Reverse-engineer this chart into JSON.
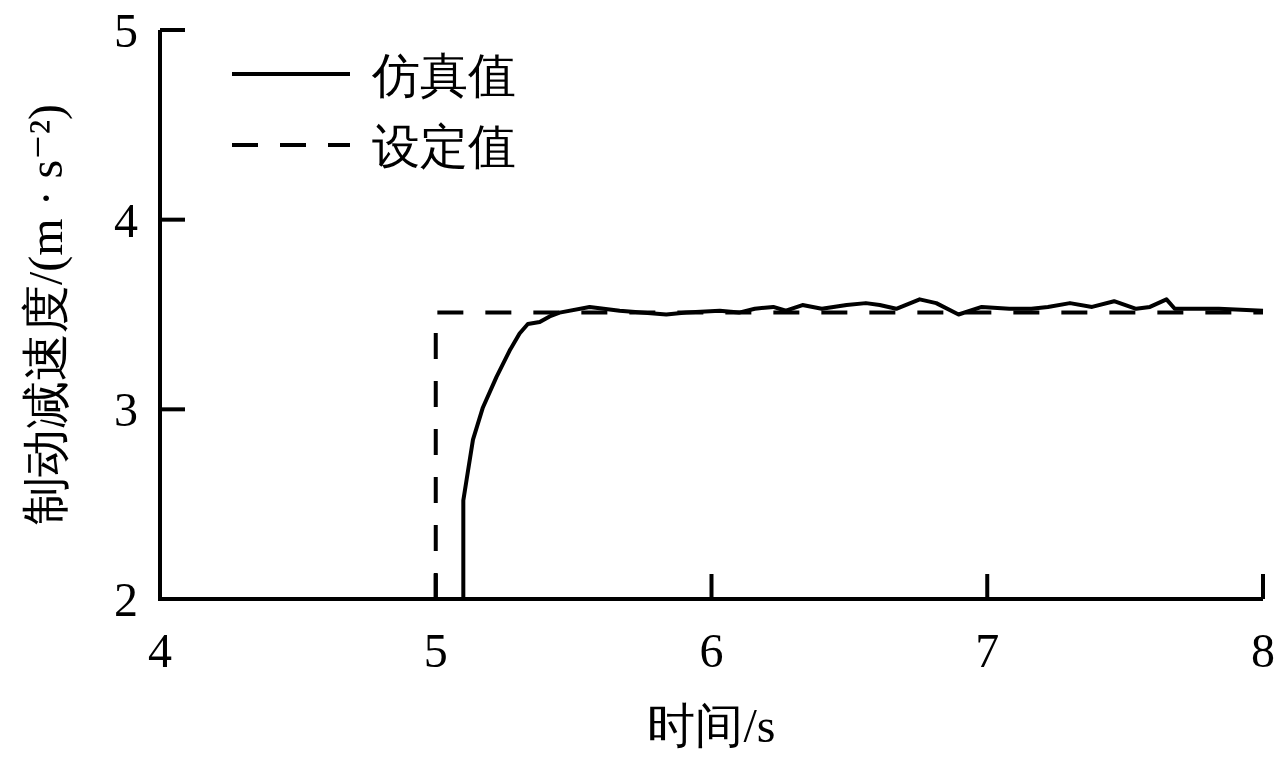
{
  "chart_data": {
    "type": "line",
    "xlabel": "时间/s",
    "ylabel": "制动减速度/(m · s⁻²)",
    "xlim": [
      4,
      8
    ],
    "ylim": [
      2,
      5
    ],
    "xticks": [
      4,
      5,
      6,
      7,
      8
    ],
    "yticks": [
      2,
      3,
      4,
      5
    ],
    "grid": false,
    "legend": "top left",
    "series": [
      {
        "name": "仿真值",
        "color": "#000000",
        "line_style": "solid",
        "x": [
          5.1,
          5.1,
          5.112,
          5.135,
          5.171,
          5.22,
          5.268,
          5.304,
          5.334,
          5.377,
          5.413,
          5.449,
          5.558,
          5.667,
          5.836,
          5.908,
          6.03,
          6.1,
          6.157,
          6.224,
          6.27,
          6.33,
          6.4,
          6.49,
          6.56,
          6.61,
          6.67,
          6.755,
          6.815,
          6.896,
          6.98,
          7.08,
          7.16,
          7.22,
          7.3,
          7.38,
          7.46,
          7.54,
          7.59,
          7.65,
          7.68,
          7.74,
          7.84,
          8.0
        ],
        "values": [
          2,
          2.52,
          2.63,
          2.84,
          3.01,
          3.17,
          3.31,
          3.4,
          3.45,
          3.46,
          3.49,
          3.51,
          3.54,
          3.52,
          3.5,
          3.51,
          3.52,
          3.51,
          3.53,
          3.54,
          3.52,
          3.55,
          3.53,
          3.55,
          3.56,
          3.55,
          3.53,
          3.58,
          3.56,
          3.5,
          3.54,
          3.53,
          3.53,
          3.54,
          3.56,
          3.54,
          3.57,
          3.53,
          3.54,
          3.58,
          3.53,
          3.53,
          3.53,
          3.52
        ]
      },
      {
        "name": "设定值",
        "color": "#000000",
        "line_style": "dashed",
        "x": [
          5,
          5,
          8
        ],
        "values": [
          2,
          3.51,
          3.51
        ]
      }
    ]
  }
}
